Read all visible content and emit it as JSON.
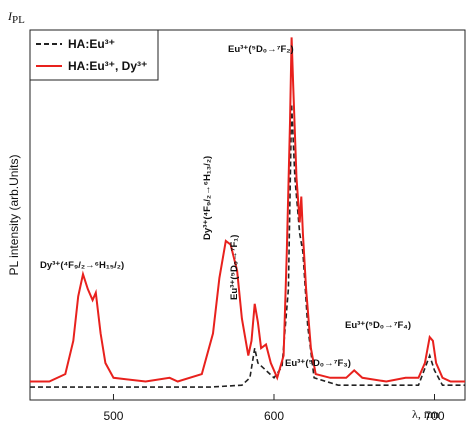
{
  "chart_data": {
    "type": "line",
    "ylabel": "PL intensity (arb.Units)",
    "symbol": {
      "main": "I",
      "sub": "PL"
    },
    "xlabel": "λ, nm",
    "xlim": [
      448,
      719
    ],
    "xticks": [
      500,
      600,
      700
    ],
    "ylim": [
      0,
      100
    ],
    "legend": "upper left",
    "series": [
      {
        "name": "HA:Eu³⁺",
        "color": "#222222",
        "dash": true,
        "x": [
          448,
          560,
          580,
          585,
          588,
          590,
          595,
          600,
          605,
          609,
          611,
          613,
          616,
          618,
          621,
          625,
          640,
          690,
          697,
          700,
          705,
          719
        ],
        "values": [
          3.5,
          3.5,
          4,
          6,
          14,
          10,
          8,
          6,
          9,
          30,
          80,
          60,
          45,
          40,
          20,
          6,
          4,
          4,
          12,
          8,
          4,
          4
        ]
      },
      {
        "name": "HA:Eu³⁺, Dy³⁺",
        "color": "#e8211d",
        "dash": false,
        "x": [
          448,
          460,
          470,
          475,
          478,
          481,
          484,
          487,
          489,
          492,
          495,
          500,
          520,
          535,
          540,
          555,
          562,
          566,
          570,
          573,
          577,
          580,
          584,
          586,
          588,
          590,
          592,
          595,
          598,
          602,
          606,
          608,
          610,
          611,
          612,
          614,
          616,
          617,
          618,
          620,
          623,
          626,
          635,
          645,
          650,
          655,
          670,
          682,
          690,
          694,
          697,
          699,
          701,
          703,
          705,
          710,
          719
        ],
        "values": [
          5,
          5,
          7,
          16,
          28,
          34,
          30,
          27,
          29,
          18,
          10,
          6,
          5,
          6,
          5,
          7,
          18,
          33,
          43,
          42,
          35,
          22,
          12,
          16,
          26,
          21,
          14,
          15,
          10,
          6,
          12,
          40,
          75,
          98,
          85,
          60,
          48,
          55,
          45,
          30,
          14,
          7,
          6,
          6,
          8,
          6,
          5,
          6,
          6,
          10,
          17,
          16,
          10,
          8,
          6,
          5,
          5
        ]
      }
    ],
    "annotations": [
      "Dy³⁺(⁴F₉/₂→⁶H₁₅/₂)",
      "Dy³⁺(⁴F₉/₂→⁶H₁₃/₂)",
      "Eu³⁺(⁵D₀→⁷F₁)",
      "Eu³⁺(⁵D₀→⁷F₂)",
      "Eu³⁺(⁵D₀→⁷F₃)",
      "Eu³⁺(⁵D₀→⁷F₄)"
    ]
  }
}
